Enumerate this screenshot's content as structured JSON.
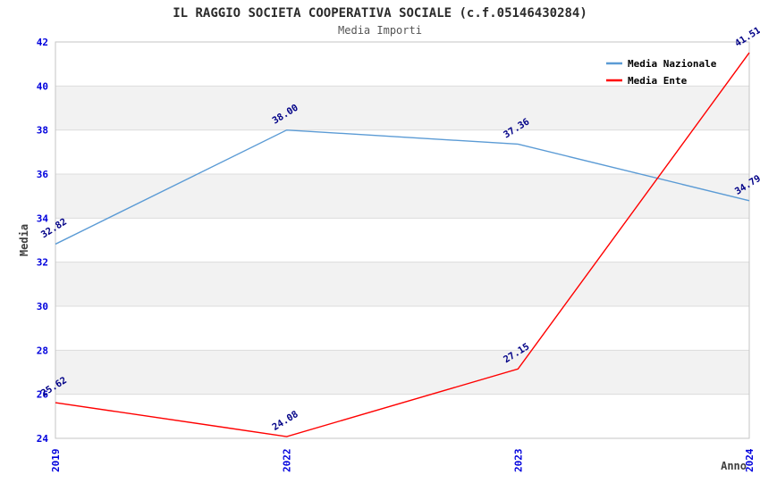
{
  "chart_data": {
    "type": "line",
    "title": "IL RAGGIO SOCIETA COOPERATIVA SOCIALE (c.f.05146430284)",
    "subtitle": "Media Importi",
    "categories": [
      "2019",
      "2022",
      "2023",
      "2024"
    ],
    "series": [
      {
        "name": "Media Nazionale",
        "color": "#5b9bd5",
        "values": [
          32.82,
          38.0,
          37.36,
          34.79
        ],
        "labels": [
          "32.82",
          "38.00",
          "37.36",
          "34.79"
        ]
      },
      {
        "name": "Media Ente",
        "color": "#ff0000",
        "values": [
          25.62,
          24.08,
          27.15,
          41.51
        ],
        "labels": [
          "25.62",
          "24.08",
          "27.15",
          "41.51"
        ]
      }
    ],
    "xlabel": "Anno",
    "ylabel": "Media",
    "ylim": [
      24,
      42
    ],
    "ytick_step": 2,
    "grid": "horizontal-bands",
    "legend_position": "top-right-inside",
    "colors": {
      "tick_label": "#0000dd",
      "data_label": "#000087",
      "axis_title": "#404040",
      "title": "#2b2b2b",
      "subtitle": "#555555",
      "band_alt": "#f2f2f2",
      "band_main": "#ffffff",
      "gridline": "#dcdcdc",
      "plot_border": "#c6c6c6",
      "legend_text": "#000000"
    }
  }
}
